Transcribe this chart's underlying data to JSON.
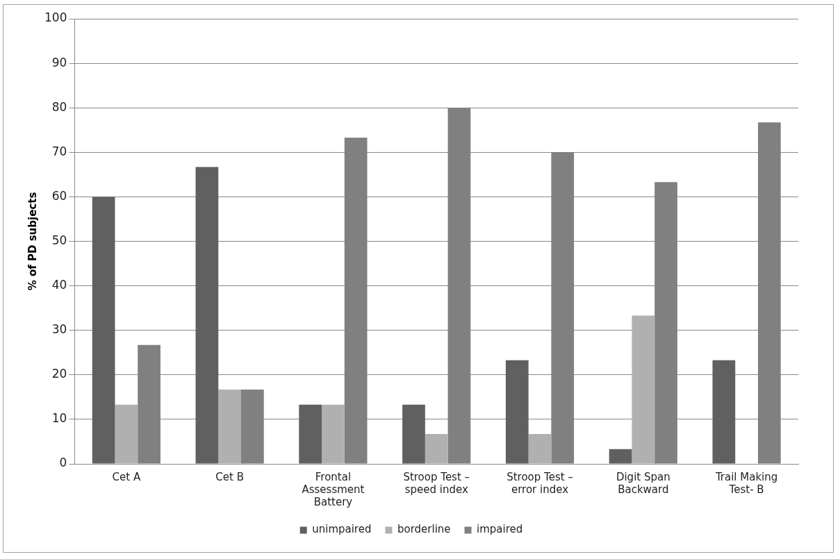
{
  "chart_data": {
    "type": "bar",
    "ylabel": "% of PD subjects",
    "categories": [
      "Cet A",
      "Cet B",
      "Frontal Assessment Battery",
      "Stroop Test – speed index",
      "Stroop Test – error index",
      "Digit Span Backward",
      "Trail Making Test- B"
    ],
    "series": [
      {
        "name": "unimpaired",
        "color": "#606060",
        "values": [
          60,
          66.7,
          13.3,
          13.3,
          23.3,
          3.3,
          23.3
        ]
      },
      {
        "name": "borderline",
        "color": "#b0b0b0",
        "values": [
          13.3,
          16.7,
          13.3,
          6.7,
          6.7,
          33.3,
          0
        ]
      },
      {
        "name": "impaired",
        "color": "#808080",
        "values": [
          26.7,
          16.7,
          73.3,
          80,
          70,
          63.3,
          76.7
        ]
      }
    ],
    "ylim": [
      0,
      100
    ],
    "yticks": [
      0,
      10,
      20,
      30,
      40,
      50,
      60,
      70,
      80,
      90,
      100
    ],
    "grid": "y",
    "legend": "bottom"
  }
}
